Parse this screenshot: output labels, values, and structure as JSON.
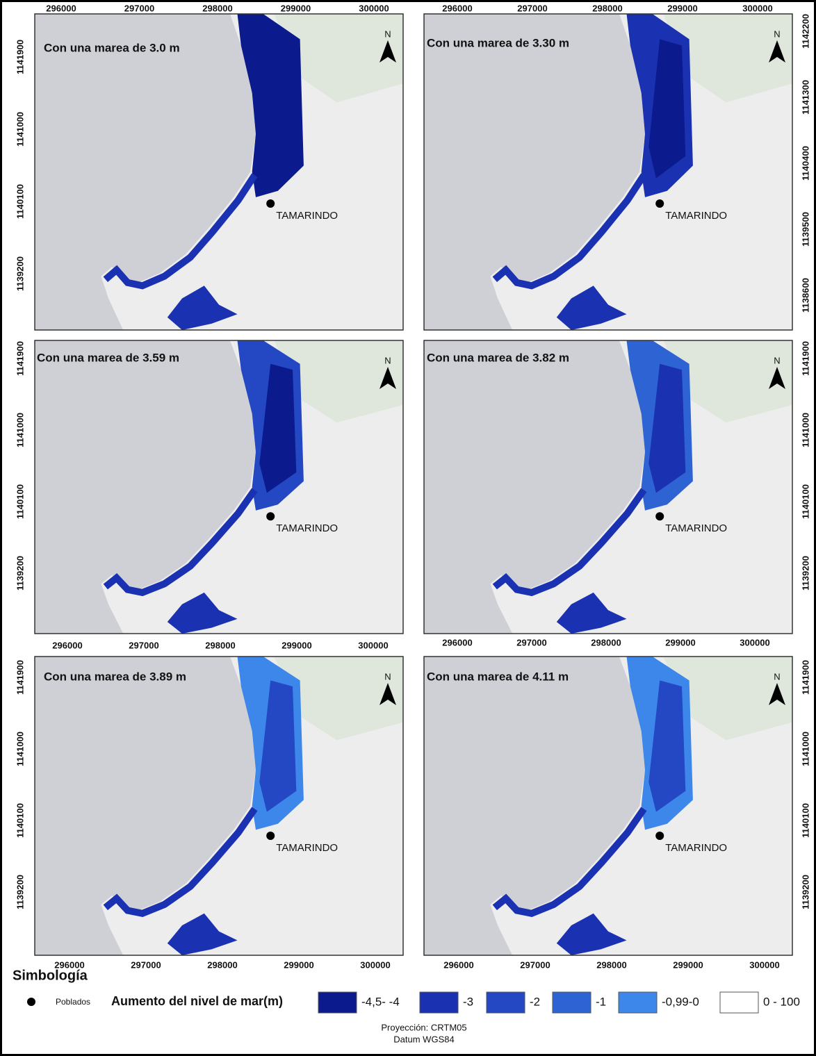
{
  "panels": [
    {
      "title": "Con una marea de 3.0 m",
      "x_ticks": [
        296000,
        297000,
        298000,
        299000,
        300000
      ],
      "y_ticks": [
        1141900,
        1141000,
        1140100,
        1139200
      ]
    },
    {
      "title": "Con una marea de 3.30 m",
      "x_ticks": [
        296000,
        297000,
        298000,
        299000,
        300000
      ],
      "y_ticks": [
        1142200,
        1141300,
        1140400,
        1139500,
        1138600
      ]
    },
    {
      "title": "Con una marea de 3.59 m",
      "x_ticks": [
        296000,
        297000,
        298000,
        299000,
        300000
      ],
      "y_ticks": [
        1141900,
        1141000,
        1140100,
        1139200
      ]
    },
    {
      "title": "Con una marea de 3.82 m",
      "x_ticks": [
        296000,
        297000,
        298000,
        299000,
        300000
      ],
      "y_ticks": [
        1141900,
        1141000,
        1140100,
        1139200
      ]
    },
    {
      "title": "Con una marea de 3.89 m",
      "x_ticks": [
        296000,
        297000,
        298000,
        299000,
        300000
      ],
      "y_ticks": [
        1141900,
        1141000,
        1140100,
        1139200
      ]
    },
    {
      "title": "Con una marea de 4.11 m",
      "x_ticks": [
        296000,
        297000,
        298000,
        299000,
        300000
      ],
      "y_ticks": [
        1141900,
        1141000,
        1140100,
        1139200
      ]
    }
  ],
  "north_label": "N",
  "place": "TAMARINDO",
  "legend": {
    "title": "Simbología",
    "settlement": "Poblados",
    "scale_title": "Aumento del nivel de mar(m)",
    "items": [
      {
        "label": "-4,5- -4",
        "color": "#0b1a8c"
      },
      {
        "label": "-3",
        "color": "#1a31b2"
      },
      {
        "label": "-2",
        "color": "#2447c4"
      },
      {
        "label": "-1",
        "color": "#2e63d4"
      },
      {
        "label": "-0,99-0",
        "color": "#3d87ea"
      },
      {
        "label": "0 - 100",
        "color": "#ffffff"
      }
    ]
  },
  "footer": {
    "projection": "Proyección: CRTM05",
    "datum": "Datum WGS84"
  }
}
